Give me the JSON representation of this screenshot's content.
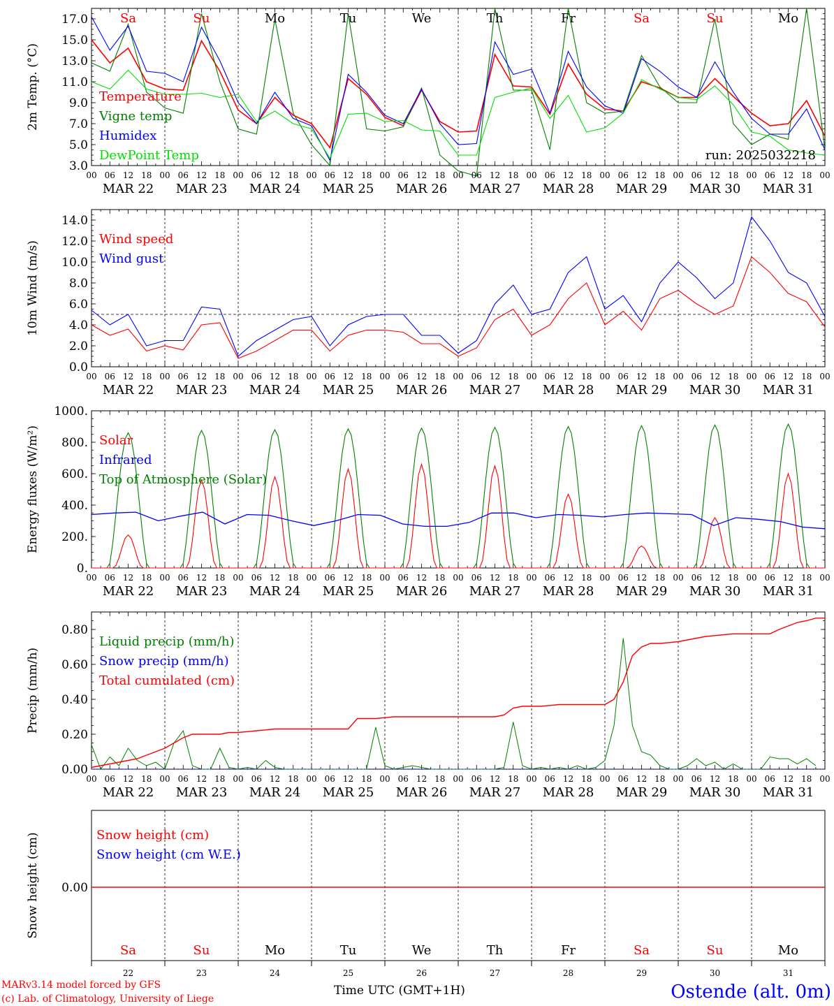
{
  "chart_data": [
    {
      "type": "line",
      "ylabel": "2m Temp. (°C)",
      "ylim": [
        3.0,
        18.0
      ],
      "yticks": [
        "3.0",
        "5.0",
        "7.0",
        "9.0",
        "11.0",
        "13.0",
        "15.0",
        "17.0"
      ],
      "run_label": "run: 2025032218",
      "x": [
        0,
        6,
        12,
        18,
        24,
        30,
        36,
        42,
        48,
        54,
        60,
        66,
        72,
        78,
        84,
        90,
        96,
        102,
        108,
        114,
        120,
        126,
        132,
        138,
        144,
        150,
        156,
        162,
        168,
        174,
        180,
        186,
        192,
        198,
        204,
        210,
        216,
        222,
        228,
        234,
        240
      ],
      "series": [
        {
          "name": "Temperature",
          "color": "#ff0000",
          "values": [
            15.0,
            12.8,
            14.2,
            11.0,
            10.3,
            10.2,
            14.9,
            12.0,
            8.3,
            7.0,
            9.5,
            7.8,
            7.0,
            4.7,
            11.3,
            9.8,
            7.6,
            6.8,
            10.2,
            7.2,
            6.2,
            6.3,
            13.6,
            10.6,
            10.5,
            7.9,
            12.7,
            9.8,
            8.4,
            8.2,
            11.0,
            10.4,
            9.5,
            9.5,
            11.3,
            9.6,
            8.0,
            6.8,
            7.0,
            9.2,
            5.8
          ]
        },
        {
          "name": "Vigne temp",
          "color": "#008000",
          "values": [
            12.8,
            12.0,
            16.5,
            10.0,
            8.5,
            8.0,
            17.5,
            11.0,
            6.5,
            6.0,
            17.0,
            8.0,
            5.0,
            3.0,
            17.5,
            6.5,
            6.3,
            6.7,
            10.4,
            4.0,
            2.5,
            2.0,
            18.0,
            10.2,
            10.2,
            4.5,
            18.0,
            9.0,
            8.0,
            8.2,
            13.5,
            10.5,
            9.0,
            9.0,
            17.0,
            7.0,
            5.0,
            6.0,
            5.5,
            18.0,
            4.5
          ]
        },
        {
          "name": "Humidex",
          "color": "#0000ff",
          "values": [
            17.2,
            14.0,
            16.3,
            12.0,
            11.8,
            11.0,
            16.2,
            13.0,
            9.0,
            7.0,
            10.0,
            7.5,
            6.8,
            3.5,
            11.7,
            10.0,
            7.8,
            7.0,
            10.3,
            7.0,
            5.0,
            5.1,
            14.8,
            11.7,
            12.2,
            8.0,
            13.9,
            10.5,
            8.7,
            8.0,
            13.2,
            12.0,
            10.5,
            9.5,
            12.9,
            10.0,
            7.5,
            6.0,
            6.0,
            8.4,
            4.5
          ]
        },
        {
          "name": "DewPoint Temp",
          "color": "#00e000",
          "values": [
            11.0,
            10.3,
            12.1,
            10.3,
            9.8,
            9.8,
            9.9,
            9.5,
            9.8,
            7.2,
            8.2,
            7.0,
            6.5,
            3.7,
            7.9,
            8.0,
            7.2,
            7.3,
            6.4,
            6.3,
            4.0,
            4.0,
            9.5,
            10.0,
            10.4,
            7.5,
            9.7,
            6.2,
            6.6,
            8.0,
            11.2,
            10.3,
            9.5,
            9.3,
            10.6,
            8.8,
            6.2,
            5.8,
            4.5,
            4.2,
            4.0
          ]
        }
      ]
    },
    {
      "type": "line",
      "ylabel": "10m Wind (m/s)",
      "ylim": [
        0.0,
        15.0
      ],
      "yticks": [
        "0.0",
        "2.0",
        "4.0",
        "6.0",
        "8.0",
        "10.0",
        "12.0",
        "14.0"
      ],
      "reference_line": 5.0,
      "x": [
        0,
        6,
        12,
        18,
        24,
        30,
        36,
        42,
        48,
        54,
        60,
        66,
        72,
        78,
        84,
        90,
        96,
        102,
        108,
        114,
        120,
        126,
        132,
        138,
        144,
        150,
        156,
        162,
        168,
        174,
        180,
        186,
        192,
        198,
        204,
        210,
        216,
        222,
        228,
        234,
        240
      ],
      "series": [
        {
          "name": "Wind speed",
          "color": "#ff0000",
          "values": [
            4.0,
            3.0,
            3.6,
            1.5,
            2.0,
            1.6,
            4.0,
            4.2,
            0.8,
            1.5,
            2.5,
            3.5,
            3.5,
            1.5,
            3.0,
            3.5,
            3.5,
            3.3,
            2.2,
            2.2,
            1.0,
            1.8,
            4.5,
            5.5,
            3.0,
            4.0,
            6.5,
            8.0,
            4.0,
            5.3,
            3.5,
            6.5,
            7.3,
            6.0,
            5.0,
            5.8,
            10.5,
            9.0,
            7.0,
            6.2,
            3.8
          ]
        },
        {
          "name": "Wind gust",
          "color": "#0000ff",
          "values": [
            5.4,
            4.0,
            5.0,
            2.0,
            2.5,
            2.5,
            5.7,
            5.5,
            1.0,
            2.5,
            3.5,
            4.5,
            4.8,
            2.0,
            4.0,
            4.8,
            5.0,
            5.0,
            3.0,
            3.0,
            1.3,
            2.5,
            6.0,
            7.8,
            5.0,
            5.5,
            9.0,
            10.5,
            5.5,
            6.8,
            4.3,
            8.0,
            10.0,
            8.5,
            6.5,
            8.0,
            14.3,
            12.0,
            9.0,
            8.0,
            4.8
          ]
        }
      ]
    },
    {
      "type": "line",
      "ylabel": "Energy fluxes (W/m²)",
      "ylim": [
        0,
        1000
      ],
      "yticks": [
        "0.",
        "200.",
        "400.",
        "600.",
        "800.",
        "1000."
      ],
      "day_peaks": {
        "toa": [
          860,
          875,
          880,
          885,
          890,
          895,
          900,
          905,
          910,
          915
        ],
        "solar": [
          210,
          560,
          580,
          630,
          660,
          650,
          470,
          140,
          320,
          600
        ]
      },
      "series": [
        {
          "name": "Solar",
          "color": "#ff0000"
        },
        {
          "name": "Infrared",
          "color": "#0000ff",
          "values": [
            340,
            350,
            355,
            300,
            330,
            355,
            280,
            340,
            335,
            300,
            270,
            300,
            340,
            335,
            280,
            265,
            265,
            290,
            350,
            350,
            320,
            340,
            335,
            325,
            340,
            350,
            345,
            340,
            270,
            320,
            310,
            295,
            260,
            250
          ]
        },
        {
          "name": "Top of Atmosphere (Solar)",
          "color": "#008000"
        }
      ]
    },
    {
      "type": "line",
      "ylabel": "Precip (mm/h)",
      "ylim": [
        0.0,
        0.9
      ],
      "yticks": [
        "0.00",
        "0.20",
        "0.40",
        "0.60",
        "0.80"
      ],
      "series": [
        {
          "name": "Liquid precip (mm/h)",
          "color": "#008000",
          "values": [
            0.14,
            0.0,
            0.07,
            0.02,
            0.12,
            0.05,
            0.02,
            0.04,
            0.0,
            0.15,
            0.22,
            0.02,
            0.0,
            0.0,
            0.12,
            0.01,
            0.0,
            0.01,
            0.0,
            0.05,
            0.01,
            0.0,
            0.0,
            0.0,
            0.0,
            0.0,
            0.0,
            0.0,
            0.0,
            0.0,
            0.0,
            0.24,
            0.02,
            0.0,
            0.01,
            0.02,
            0.01,
            0.0,
            0.0,
            0.0,
            0.0,
            0.0,
            0.0,
            0.0,
            0.0,
            0.01,
            0.27,
            0.02,
            0.0,
            0.01,
            0.0,
            0.01,
            0.0,
            0.02,
            0.0,
            0.01,
            0.05,
            0.25,
            0.75,
            0.25,
            0.1,
            0.08,
            0.02,
            0.0,
            0.0,
            0.02,
            0.06,
            0.02,
            0.04,
            0.0,
            0.03,
            0.0,
            0.0,
            0.0,
            0.07,
            0.06,
            0.06,
            0.03,
            0.06,
            0.02
          ]
        },
        {
          "name": "Snow precip (mm/h)",
          "color": "#0000ff"
        },
        {
          "name": "Total cumulated (cm)",
          "color": "#ff0000",
          "x": [
            0,
            3,
            6,
            9,
            12,
            15,
            18,
            21,
            24,
            27,
            30,
            33,
            36,
            39,
            42,
            45,
            48,
            51,
            54,
            57,
            60,
            63,
            66,
            69,
            72,
            75,
            78,
            81,
            84,
            87,
            90,
            93,
            96,
            99,
            102,
            105,
            108,
            111,
            114,
            117,
            120,
            123,
            126,
            129,
            132,
            135,
            138,
            141,
            144,
            147,
            150,
            153,
            156,
            159,
            162,
            165,
            168,
            171,
            174,
            177,
            180,
            183,
            186,
            189,
            192,
            195,
            198,
            201,
            204,
            207,
            210,
            213,
            216,
            219,
            222,
            225,
            228,
            231,
            234,
            237,
            240
          ],
          "values": [
            0.01,
            0.02,
            0.03,
            0.04,
            0.05,
            0.06,
            0.08,
            0.1,
            0.12,
            0.15,
            0.18,
            0.2,
            0.2,
            0.2,
            0.2,
            0.21,
            0.21,
            0.215,
            0.22,
            0.225,
            0.23,
            0.23,
            0.23,
            0.23,
            0.23,
            0.23,
            0.23,
            0.23,
            0.23,
            0.29,
            0.29,
            0.29,
            0.295,
            0.3,
            0.3,
            0.3,
            0.3,
            0.3,
            0.3,
            0.3,
            0.3,
            0.3,
            0.3,
            0.3,
            0.3,
            0.31,
            0.35,
            0.36,
            0.36,
            0.36,
            0.365,
            0.37,
            0.37,
            0.37,
            0.37,
            0.37,
            0.37,
            0.4,
            0.5,
            0.65,
            0.7,
            0.72,
            0.72,
            0.725,
            0.73,
            0.74,
            0.75,
            0.76,
            0.765,
            0.77,
            0.775,
            0.775,
            0.775,
            0.775,
            0.775,
            0.8,
            0.82,
            0.84,
            0.85,
            0.865,
            0.865
          ]
        }
      ]
    },
    {
      "type": "line",
      "ylabel": "Snow height (cm)",
      "yticks": [
        "0.00"
      ],
      "series": [
        {
          "name": "Snow height (cm)",
          "color": "#ff0000",
          "values": [
            0,
            0
          ]
        },
        {
          "name": "Snow height (cm W.E.)",
          "color": "#0000ff"
        }
      ]
    }
  ],
  "time_axis": {
    "hour_labels": [
      "00",
      "06",
      "12",
      "18"
    ],
    "final_hour_label": "00",
    "dates": [
      "MAR 22",
      "MAR 23",
      "MAR 24",
      "MAR 25",
      "MAR 26",
      "MAR 27",
      "MAR 28",
      "MAR 29",
      "MAR 30",
      "MAR 31"
    ],
    "weekdays": [
      "Sa",
      "Su",
      "Mo",
      "Tu",
      "We",
      "Th",
      "Fr",
      "Sa",
      "Su",
      "Mo"
    ],
    "weekend": [
      true,
      true,
      false,
      false,
      false,
      false,
      false,
      true,
      true,
      false
    ],
    "day_numbers": [
      "22",
      "23",
      "24",
      "25",
      "26",
      "27",
      "28",
      "29",
      "30",
      "31"
    ],
    "xlabel": "Time UTC (GMT+1H)"
  },
  "colors": {
    "weekend": "#ff0000",
    "weekday": "#000000",
    "station": "#0000ff",
    "credit": "#ff0000"
  },
  "footer": {
    "credit_line1": "MARv3.14 model forced by GFS",
    "credit_line2": "(c) Lab. of Climatology, University of Liege",
    "station": "Ostende (alt. 0m)"
  }
}
